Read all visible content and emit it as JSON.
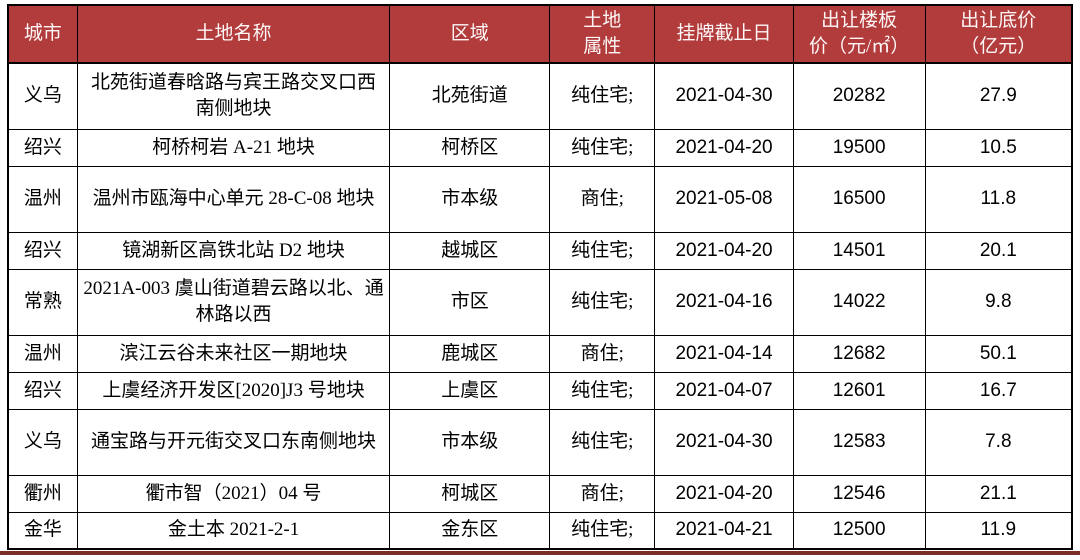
{
  "colors": {
    "header_background": "#B23B3B",
    "header_text": "#FDF7F7",
    "cell_border": "#000000",
    "bottom_bar": "#7A2E2A",
    "body_text": "#000000"
  },
  "table": {
    "columns": [
      {
        "key": "city",
        "label": "城市"
      },
      {
        "key": "name",
        "label": "土地名称"
      },
      {
        "key": "district",
        "label": "区域"
      },
      {
        "key": "property",
        "label": "土地\n属性"
      },
      {
        "key": "deadline",
        "label": "挂牌截止日"
      },
      {
        "key": "floor_price",
        "label": "出让楼板\n价（元/㎡）"
      },
      {
        "key": "base_price",
        "label": "出让底价\n（亿元）"
      }
    ],
    "rows": [
      {
        "city": "义乌",
        "name": "北苑街道春晗路与宾王路交叉口西南侧地块",
        "district": "北苑街道",
        "property": "纯住宅;",
        "deadline": "2021-04-30",
        "floor_price": "20282",
        "base_price": "27.9"
      },
      {
        "city": "绍兴",
        "name": "柯桥柯岩 A-21 地块",
        "district": "柯桥区",
        "property": "纯住宅;",
        "deadline": "2021-04-20",
        "floor_price": "19500",
        "base_price": "10.5"
      },
      {
        "city": "温州",
        "name": "温州市瓯海中心单元 28-C-08 地块",
        "district": "市本级",
        "property": "商住;",
        "deadline": "2021-05-08",
        "floor_price": "16500",
        "base_price": "11.8"
      },
      {
        "city": "绍兴",
        "name": "镜湖新区高铁北站 D2 地块",
        "district": "越城区",
        "property": "纯住宅;",
        "deadline": "2021-04-20",
        "floor_price": "14501",
        "base_price": "20.1"
      },
      {
        "city": "常熟",
        "name": "2021A-003 虞山街道碧云路以北、通林路以西",
        "district": "市区",
        "property": "纯住宅;",
        "deadline": "2021-04-16",
        "floor_price": "14022",
        "base_price": "9.8"
      },
      {
        "city": "温州",
        "name": "滨江云谷未来社区一期地块",
        "district": "鹿城区",
        "property": "商住;",
        "deadline": "2021-04-14",
        "floor_price": "12682",
        "base_price": "50.1"
      },
      {
        "city": "绍兴",
        "name": "上虞经济开发区[2020]J3 号地块",
        "district": "上虞区",
        "property": "纯住宅;",
        "deadline": "2021-04-07",
        "floor_price": "12601",
        "base_price": "16.7"
      },
      {
        "city": "义乌",
        "name": "通宝路与开元街交叉口东南侧地块",
        "district": "市本级",
        "property": "纯住宅;",
        "deadline": "2021-04-30",
        "floor_price": "12583",
        "base_price": "7.8"
      },
      {
        "city": "衢州",
        "name": "衢市智（2021）04 号",
        "district": "柯城区",
        "property": "商住;",
        "deadline": "2021-04-20",
        "floor_price": "12546",
        "base_price": "21.1"
      },
      {
        "city": "金华",
        "name": "金土本 2021-2-1",
        "district": "金东区",
        "property": "纯住宅;",
        "deadline": "2021-04-21",
        "floor_price": "12500",
        "base_price": "11.9"
      }
    ]
  }
}
